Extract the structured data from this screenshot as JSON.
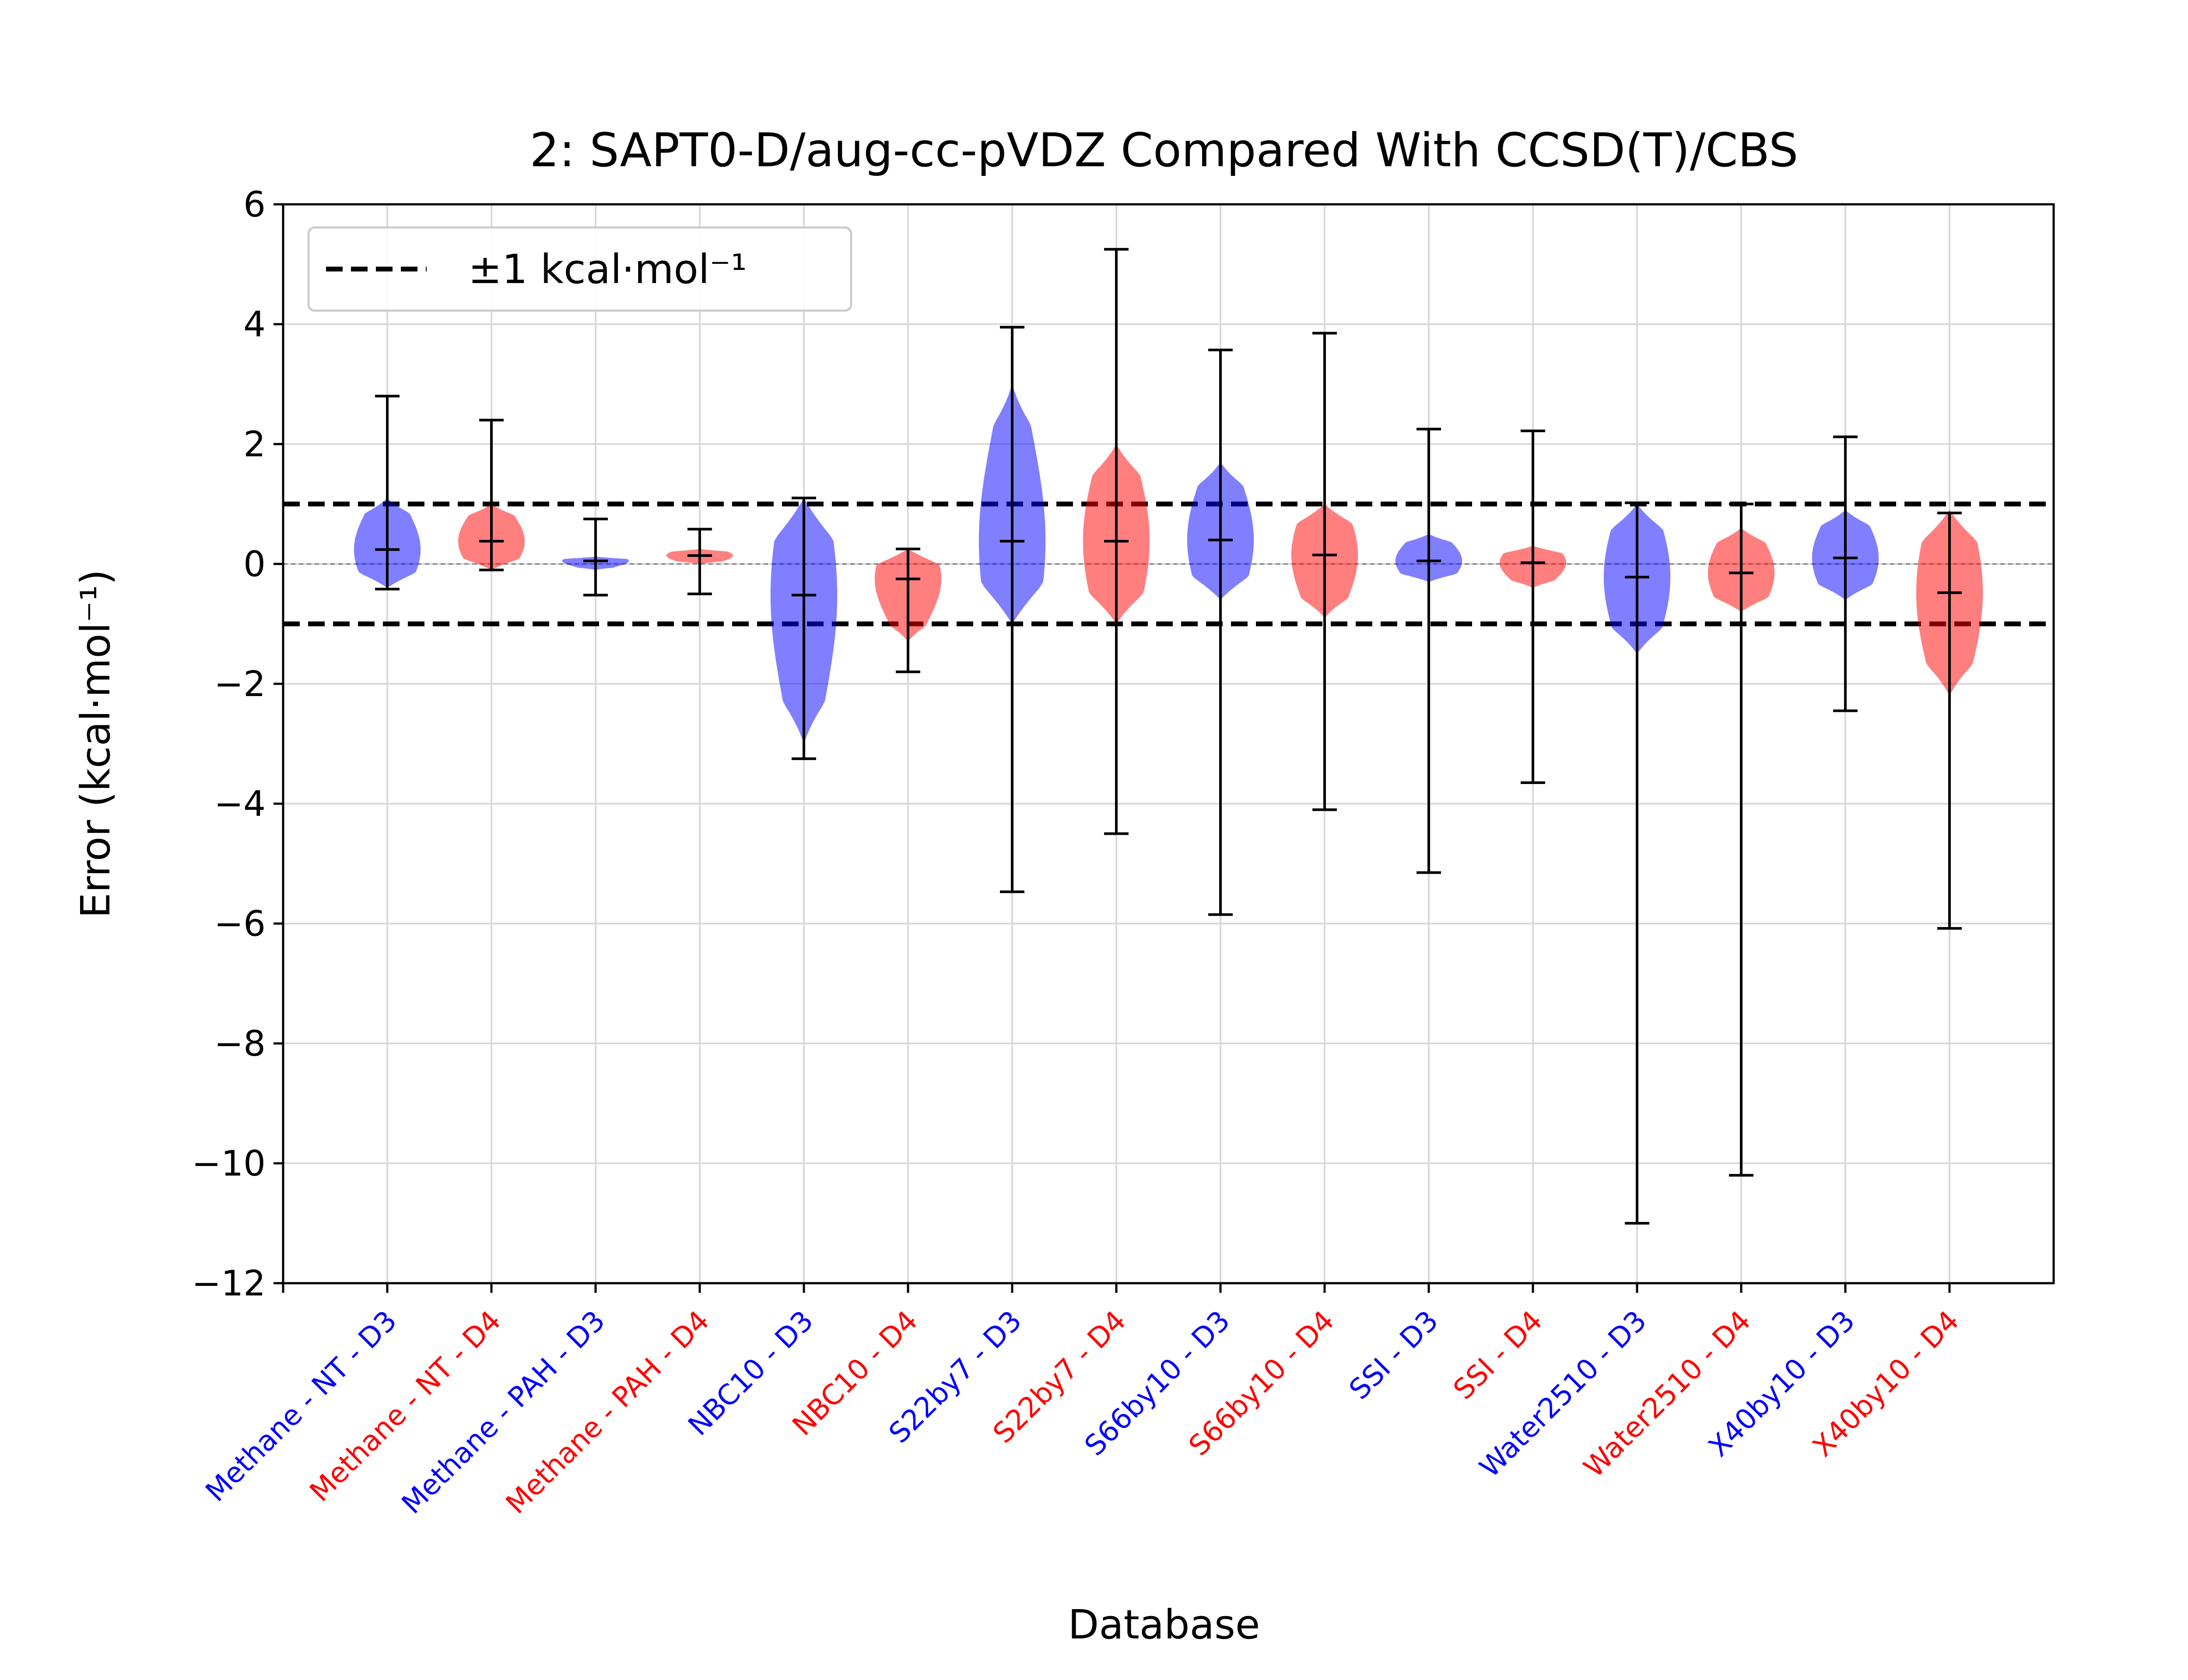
{
  "chart_data": {
    "type": "violin",
    "title": "2: SAPT0-D/aug-cc-pVDZ Compared With CCSD(T)/CBS",
    "xlabel": "Database",
    "ylabel": "Error (kcal·mol⁻¹)",
    "ylim": [
      -12,
      6
    ],
    "yticks": [
      6,
      4,
      2,
      0,
      -2,
      -4,
      -6,
      -8,
      -10,
      -12
    ],
    "ytick_labels": [
      "6",
      "4",
      "2",
      "0",
      "−2",
      "−4",
      "−6",
      "−8",
      "−10",
      "−12"
    ],
    "grid": true,
    "reference_lines": [
      {
        "label": "±1 kcal·mol⁻¹",
        "values": [
          1,
          -1
        ],
        "style": "dashed",
        "color": "#000000"
      },
      {
        "label": "",
        "values": [
          0
        ],
        "style": "dashed-thin",
        "color": "#808080"
      }
    ],
    "legend": {
      "position": "top-left",
      "entries": [
        "±1 kcal·mol⁻¹"
      ]
    },
    "colors": {
      "D3": "#0000ff",
      "D4": "#ff0000"
    },
    "categories": [
      {
        "label": "Methane - NT - D3",
        "group": "D3",
        "min": -0.42,
        "max": 2.8,
        "mean": 0.24,
        "violin_low": -0.4,
        "violin_high": 1.1,
        "violin_width": 0.5
      },
      {
        "label": "Methane - NT - D4",
        "group": "D4",
        "min": -0.1,
        "max": 2.4,
        "mean": 0.38,
        "violin_low": -0.1,
        "violin_high": 1.0,
        "violin_width": 0.5
      },
      {
        "label": "Methane - PAH - D3",
        "group": "D3",
        "min": -0.52,
        "max": 0.75,
        "mean": 0.05,
        "violin_low": -0.1,
        "violin_high": 0.12,
        "violin_width": 0.5
      },
      {
        "label": "Methane - PAH - D4",
        "group": "D4",
        "min": -0.5,
        "max": 0.58,
        "mean": 0.14,
        "violin_low": 0.0,
        "violin_high": 0.25,
        "violin_width": 0.5
      },
      {
        "label": "NBC10 - D3",
        "group": "D3",
        "min": -3.25,
        "max": 1.1,
        "mean": -0.52,
        "violin_low": -3.0,
        "violin_high": 1.1,
        "violin_width": 0.5
      },
      {
        "label": "NBC10 - D4",
        "group": "D4",
        "min": -1.8,
        "max": 0.25,
        "mean": -0.25,
        "violin_low": -1.3,
        "violin_high": 0.25,
        "violin_width": 0.5
      },
      {
        "label": "S22by7 - D3",
        "group": "D3",
        "min": -5.47,
        "max": 3.95,
        "mean": 0.38,
        "violin_low": -1.0,
        "violin_high": 3.0,
        "violin_width": 0.5
      },
      {
        "label": "S22by7 - D4",
        "group": "D4",
        "min": -4.5,
        "max": 5.25,
        "mean": 0.38,
        "violin_low": -1.0,
        "violin_high": 2.0,
        "violin_width": 0.5
      },
      {
        "label": "S66by10 - D3",
        "group": "D3",
        "min": -5.85,
        "max": 3.57,
        "mean": 0.4,
        "violin_low": -0.6,
        "violin_high": 1.7,
        "violin_width": 0.5
      },
      {
        "label": "S66by10 - D4",
        "group": "D4",
        "min": -4.1,
        "max": 3.85,
        "mean": 0.15,
        "violin_low": -0.9,
        "violin_high": 1.0,
        "violin_width": 0.5
      },
      {
        "label": "SSI - D3",
        "group": "D3",
        "min": -5.15,
        "max": 2.25,
        "mean": 0.05,
        "violin_low": -0.3,
        "violin_high": 0.5,
        "violin_width": 0.5
      },
      {
        "label": "SSI - D4",
        "group": "D4",
        "min": -3.65,
        "max": 2.22,
        "mean": 0.02,
        "violin_low": -0.4,
        "violin_high": 0.3,
        "violin_width": 0.5
      },
      {
        "label": "Water2510 - D3",
        "group": "D3",
        "min": -11.0,
        "max": 1.02,
        "mean": -0.22,
        "violin_low": -1.5,
        "violin_high": 1.0,
        "violin_width": 0.5
      },
      {
        "label": "Water2510 - D4",
        "group": "D4",
        "min": -10.2,
        "max": 1.0,
        "mean": -0.15,
        "violin_low": -0.8,
        "violin_high": 0.6,
        "violin_width": 0.5
      },
      {
        "label": "X40by10 - D3",
        "group": "D3",
        "min": -2.45,
        "max": 2.12,
        "mean": 0.1,
        "violin_low": -0.6,
        "violin_high": 0.9,
        "violin_width": 0.5
      },
      {
        "label": "X40by10 - D4",
        "group": "D4",
        "min": -6.08,
        "max": 0.85,
        "mean": -0.48,
        "violin_low": -2.2,
        "violin_high": 0.9,
        "violin_width": 0.5
      }
    ]
  }
}
